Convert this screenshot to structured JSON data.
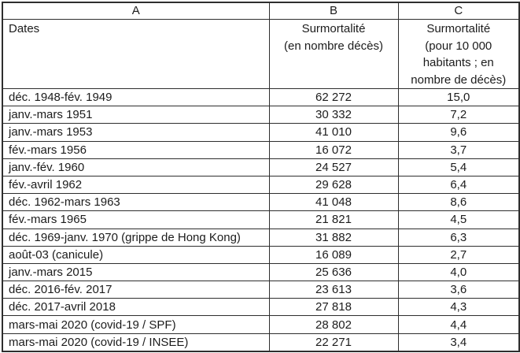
{
  "table": {
    "column_letters": [
      "A",
      "B",
      "C"
    ],
    "headers": {
      "dates": "Dates",
      "deaths": "Surmortalité\n(en nombre décès)",
      "rate": "Surmortalité\n(pour 10 000\nhabitants ; en\nnombre de décès)"
    },
    "rows": [
      {
        "date": "déc. 1948-fév. 1949",
        "deaths": "62 272",
        "rate": "15,0"
      },
      {
        "date": "janv.-mars 1951",
        "deaths": "30 332",
        "rate": "7,2"
      },
      {
        "date": "janv.-mars 1953",
        "deaths": "41 010",
        "rate": "9,6"
      },
      {
        "date": "fév.-mars 1956",
        "deaths": "16 072",
        "rate": "3,7"
      },
      {
        "date": "janv.-fév. 1960",
        "deaths": "24 527",
        "rate": "5,4"
      },
      {
        "date": "fév.-avril 1962",
        "deaths": "29 628",
        "rate": "6,4"
      },
      {
        "date": "déc. 1962-mars 1963",
        "deaths": "41 048",
        "rate": "8,6"
      },
      {
        "date": "fév.-mars 1965",
        "deaths": "21 821",
        "rate": "4,5"
      },
      {
        "date": "déc. 1969-janv. 1970 (grippe de Hong Kong)",
        "deaths": "31 882",
        "rate": "6,3"
      },
      {
        "date": "août-03 (canicule)",
        "deaths": "16 089",
        "rate": "2,7"
      },
      {
        "date": "janv.-mars 2015",
        "deaths": "25 636",
        "rate": "4,0"
      },
      {
        "date": "déc. 2016-fév. 2017",
        "deaths": "23 613",
        "rate": "3,6"
      },
      {
        "date": "déc. 2017-avril 2018",
        "deaths": "27 818",
        "rate": "4,3"
      },
      {
        "date": "mars-mai 2020 (covid-19 / SPF)",
        "deaths": "28 802",
        "rate": "4,4"
      },
      {
        "date": "mars-mai 2020 (covid-19 / INSEE)",
        "deaths": "22 271",
        "rate": "3,4"
      }
    ],
    "colors": {
      "grid_line": "#2e2e2e",
      "text": "#1c1c1c",
      "background": "#ffffff"
    }
  }
}
